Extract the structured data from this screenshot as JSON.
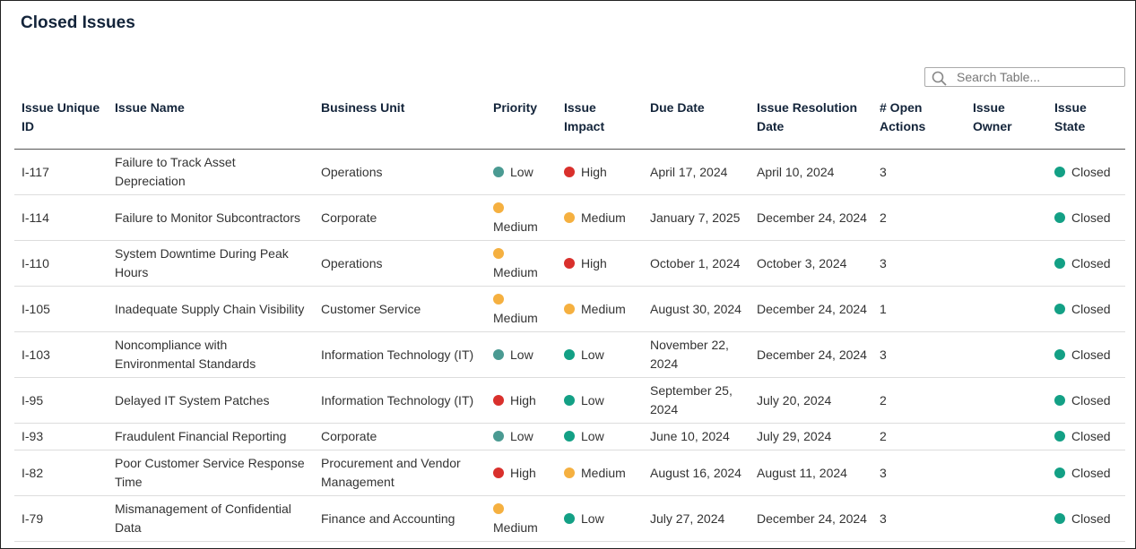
{
  "header": {
    "title": "Closed Issues",
    "search_placeholder": "Search Table..."
  },
  "table": {
    "columns": [
      "Issue Unique ID",
      "Issue Name",
      "Business Unit",
      "Priority",
      "Issue Impact",
      "Due Date",
      "Issue Resolution Date",
      "# Open Actions",
      "Issue Owner",
      "Issue State"
    ],
    "rows": [
      [
        "I-117",
        "Failure to Track Asset Depreciation",
        "Operations",
        {
          "label": "Low",
          "color": "#4a9a92"
        },
        {
          "label": "High",
          "color": "#d9302c"
        },
        "April 17, 2024",
        "April 10, 2024",
        3,
        null,
        {
          "label": "Closed",
          "color": "#13a085"
        }
      ],
      [
        "I-114",
        "Failure to Monitor Subcontractors",
        "Corporate",
        {
          "label": "Medium",
          "color": "#f5b040"
        },
        {
          "label": "Medium",
          "color": "#f5b040"
        },
        "January 7, 2025",
        "December 24, 2024",
        2,
        null,
        {
          "label": "Closed",
          "color": "#13a085"
        }
      ],
      [
        "I-110",
        "System Downtime During Peak Hours",
        "Operations",
        {
          "label": "Medium",
          "color": "#f5b040"
        },
        {
          "label": "High",
          "color": "#d9302c"
        },
        "October 1, 2024",
        "October 3, 2024",
        3,
        null,
        {
          "label": "Closed",
          "color": "#13a085"
        }
      ],
      [
        "I-105",
        "Inadequate Supply Chain Visibility",
        "Customer Service",
        {
          "label": "Medium",
          "color": "#f5b040"
        },
        {
          "label": "Medium",
          "color": "#f5b040"
        },
        "August 30, 2024",
        "December 24, 2024",
        1,
        null,
        {
          "label": "Closed",
          "color": "#13a085"
        }
      ],
      [
        "I-103",
        "Noncompliance with Environmental Standards",
        "Information Technology (IT)",
        {
          "label": "Low",
          "color": "#4a9a92"
        },
        {
          "label": "Low",
          "color": "#13a085"
        },
        "November 22, 2024",
        "December 24, 2024",
        3,
        null,
        {
          "label": "Closed",
          "color": "#13a085"
        }
      ],
      [
        "I-95",
        "Delayed IT System Patches",
        "Information Technology (IT)",
        {
          "label": "High",
          "color": "#d9302c"
        },
        {
          "label": "Low",
          "color": "#13a085"
        },
        "September 25, 2024",
        "July 20, 2024",
        2,
        null,
        {
          "label": "Closed",
          "color": "#13a085"
        }
      ],
      [
        "I-93",
        "Fraudulent Financial Reporting",
        "Corporate",
        {
          "label": "Low",
          "color": "#4a9a92"
        },
        {
          "label": "Low",
          "color": "#13a085"
        },
        "June 10, 2024",
        "July 29, 2024",
        2,
        null,
        {
          "label": "Closed",
          "color": "#13a085"
        }
      ],
      [
        "I-82",
        "Poor Customer Service Response Time",
        "Procurement and Vendor Management",
        {
          "label": "High",
          "color": "#d9302c"
        },
        {
          "label": "Medium",
          "color": "#f5b040"
        },
        "August 16, 2024",
        "August 11, 2024",
        3,
        null,
        {
          "label": "Closed",
          "color": "#13a085"
        }
      ],
      [
        "I-79",
        "Mismanagement of Confidential Data",
        "Finance and Accounting",
        {
          "label": "Medium",
          "color": "#f5b040"
        },
        {
          "label": "Low",
          "color": "#13a085"
        },
        "July 27, 2024",
        "December 24, 2024",
        3,
        null,
        {
          "label": "Closed",
          "color": "#13a085"
        }
      ]
    ]
  }
}
